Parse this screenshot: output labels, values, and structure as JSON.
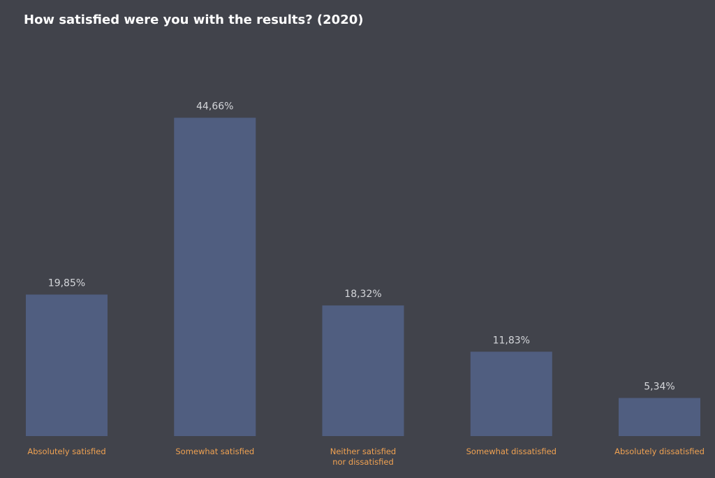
{
  "chart_data": {
    "type": "bar",
    "title": "How satisfied were you with the results? (2020)",
    "categories": [
      "Absolutely satisfied",
      "Somewhat satisfied",
      "Neither satisfied\nnor dissatisfied",
      "Somewhat dissatisfied",
      "Absolutely dissatisfied"
    ],
    "values": [
      19.85,
      44.66,
      18.32,
      11.83,
      5.34
    ],
    "value_labels": [
      "19,85%",
      "44,66%",
      "18,32%",
      "11,83%",
      "5,34%"
    ],
    "ylim": [
      0,
      50
    ],
    "grid": false,
    "legend": "none",
    "colors": {
      "background": "#41434b",
      "bar": "#505e80",
      "value_label": "#d4d6da",
      "category_label": "#f0a252",
      "title": "#ffffff"
    }
  }
}
